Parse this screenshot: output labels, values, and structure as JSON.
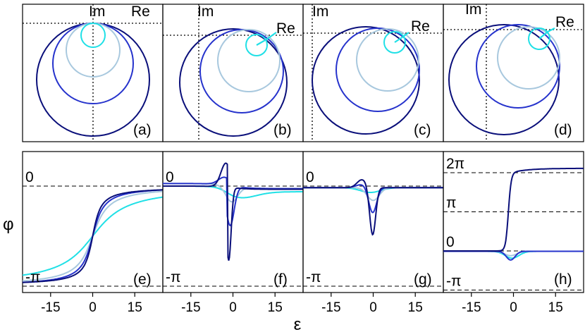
{
  "chart_data": {
    "type": "line",
    "description_free": true,
    "ylabel": "φ",
    "xlabel": "ε",
    "colors": [
      "#0a0f7a",
      "#2633cc",
      "#a8c8de",
      "#20e0e6"
    ],
    "top_panels": [
      {
        "id": "a",
        "label": "(a)",
        "axis_labels": [
          "Im",
          "Re"
        ]
      },
      {
        "id": "b",
        "label": "(b)",
        "axis_labels": [
          "Im",
          "Re"
        ]
      },
      {
        "id": "c",
        "label": "(c)",
        "axis_labels": [
          "Im",
          "Re"
        ]
      },
      {
        "id": "d",
        "label": "(d)",
        "axis_labels": [
          "Im",
          "Re"
        ]
      }
    ],
    "bottom_panels": [
      {
        "id": "e",
        "label": "(e)",
        "ref_levels": [
          {
            "text": "0",
            "value": 0
          },
          {
            "text": "-π",
            "value": -3.14159
          }
        ]
      },
      {
        "id": "f",
        "label": "(f)",
        "ref_levels": [
          {
            "text": "0",
            "value": 0
          },
          {
            "text": "-π",
            "value": -3.14159
          }
        ]
      },
      {
        "id": "g",
        "label": "(g)",
        "ref_levels": [
          {
            "text": "0",
            "value": 0
          },
          {
            "text": "-π",
            "value": -3.14159
          }
        ]
      },
      {
        "id": "h",
        "label": "(h)",
        "ref_levels": [
          {
            "text": "2π",
            "value": 6.28318
          },
          {
            "text": "π",
            "value": 3.14159
          },
          {
            "text": "0",
            "value": 0
          },
          {
            "text": "-π",
            "value": -3.14159
          }
        ]
      }
    ],
    "xticks": [
      -15,
      0,
      15
    ],
    "xtick_labels": [
      "-15",
      "0",
      "15"
    ],
    "xlim": [
      -25,
      25
    ]
  }
}
